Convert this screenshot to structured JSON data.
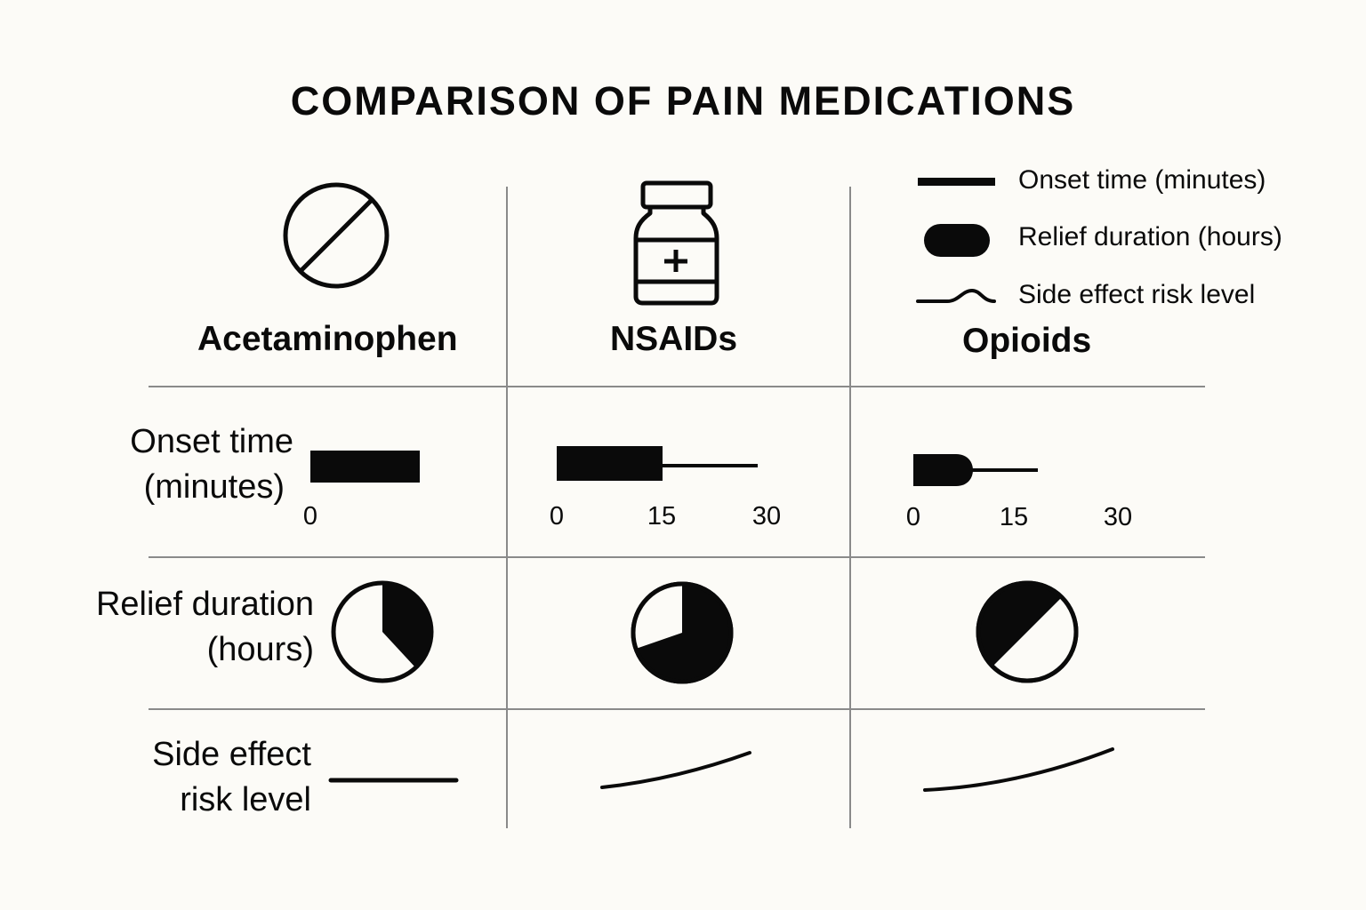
{
  "title": "COMPARISON OF PAIN MEDICATIONS",
  "legend": {
    "onset": "Onset time (minutes)",
    "relief": "Relief duration (hours)",
    "risk": "Side effect risk level"
  },
  "drugs": [
    {
      "name": "Acetaminophen",
      "icon": "pill-slash-icon"
    },
    {
      "name": "NSAIDs",
      "icon": "medicine-bottle-icon"
    },
    {
      "name": "Opioids",
      "icon": "none"
    }
  ],
  "rows": {
    "onset_label_1": "Onset time",
    "onset_label_2": "(minutes)",
    "relief_label_1": "Relief duration",
    "relief_label_2": "(hours)",
    "risk_label_1": "Side effect",
    "risk_label_2": "risk level"
  },
  "ticks": {
    "acetaminophen": [
      "0"
    ],
    "nsaids": [
      "0",
      "15",
      "30"
    ],
    "opioids": [
      "0",
      "15",
      "30"
    ]
  },
  "colors": {
    "background": "#fcfbf7",
    "ink": "#0a0a0a",
    "grid": "#8a8a8a"
  }
}
